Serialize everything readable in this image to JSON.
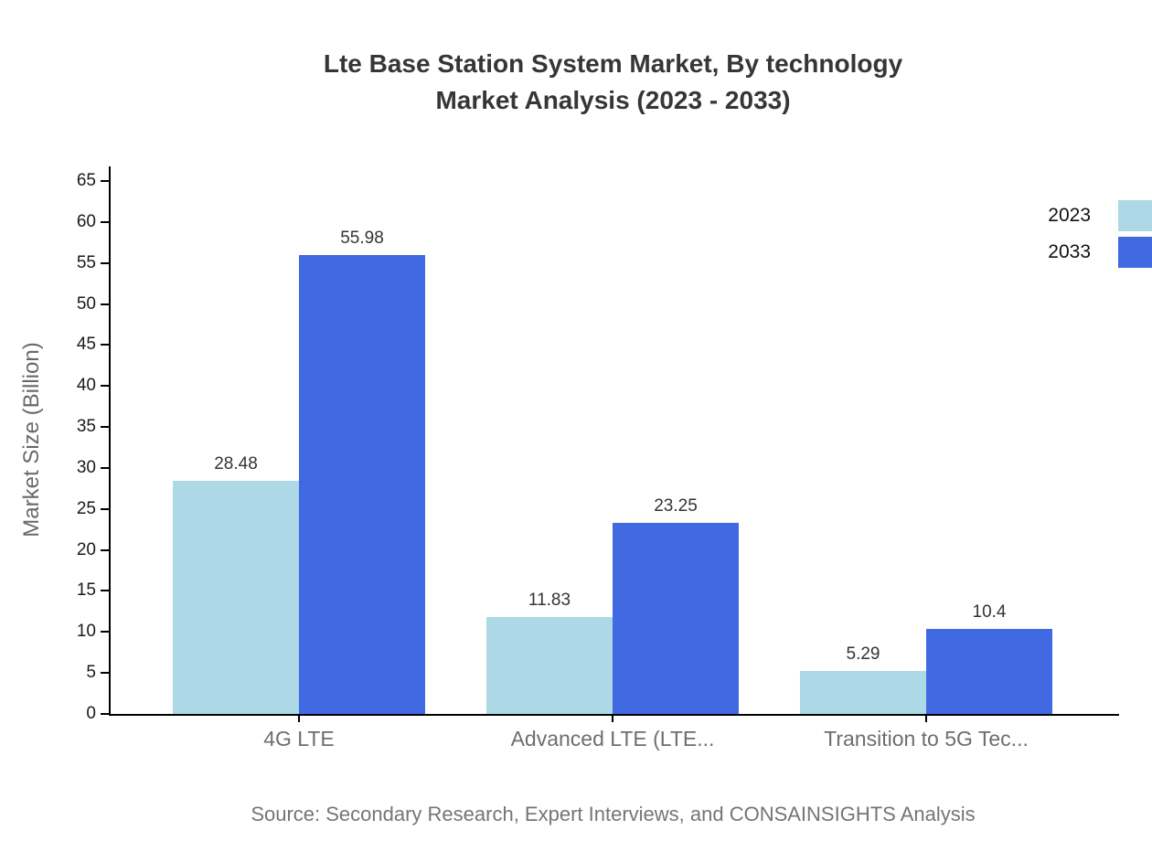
{
  "chart": {
    "title_line1": "Lte Base Station System Market, By technology",
    "title_line2": "Market Analysis (2023 - 2033)",
    "y_axis_label": "Market Size (Billion)",
    "source": "Source: Secondary Research, Expert Interviews, and CONSAINSIGHTS Analysis"
  },
  "chart_data": {
    "type": "bar",
    "title": "Lte Base Station System Market, By technology Market Analysis (2023 - 2033)",
    "categories": [
      "4G LTE",
      "Advanced LTE (LTE...",
      "Transition to 5G Tec..."
    ],
    "series": [
      {
        "name": "2023",
        "color": "#ADD8E6",
        "values": [
          28.48,
          11.83,
          5.29
        ],
        "value_labels": [
          "28.48",
          "11.83",
          "5.29"
        ]
      },
      {
        "name": "2033",
        "color": "#4169E1",
        "values": [
          55.98,
          23.25,
          10.4
        ],
        "value_labels": [
          "55.98",
          "23.25",
          "10.4"
        ]
      }
    ],
    "xlabel": "",
    "ylabel": "Market Size (Billion)",
    "ylim": [
      0,
      65
    ],
    "ytick_step": 5,
    "grid": false,
    "legend_position": "top-right",
    "axis_color": "#000000",
    "value_label_color": "#333333",
    "category_label_color": "#6e6e6e"
  }
}
